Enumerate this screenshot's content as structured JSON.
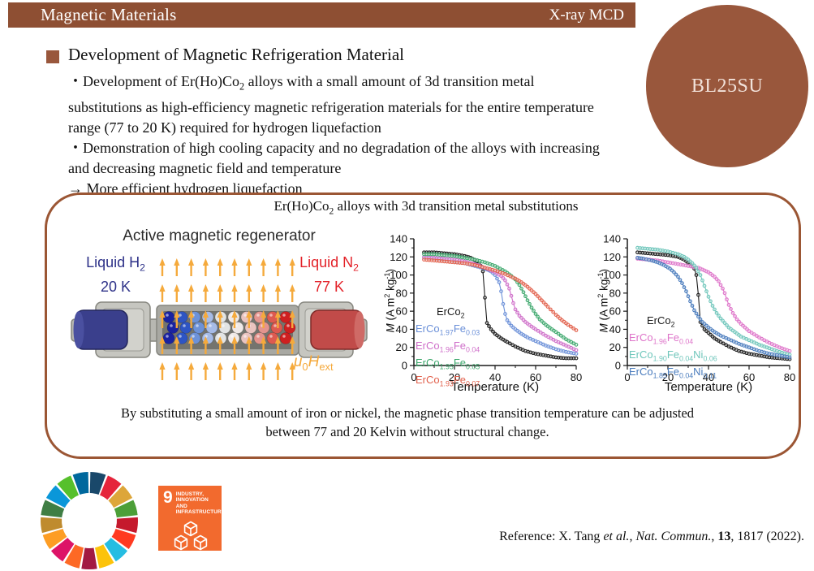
{
  "colors": {
    "brand_brown": "#8E4F33",
    "badge_brown": "#99573C",
    "box_border": "#9B5634",
    "accent_navy": "#2D3188",
    "accent_red": "#E32229",
    "accent_orange": "#F5A93B",
    "sdg9_orange": "#F26A2E"
  },
  "header": {
    "title": "Magnetic Materials",
    "tag": "X-ray MCD",
    "badge": "BL25SU"
  },
  "section": {
    "heading": "Development of Magnetic Refrigeration Material",
    "bullet1_html": "・Development of Er(Ho)Co<sub>2</sub> alloys with a small amount of 3d transition metal substitutions as high-efficiency magnetic refrigeration materials for the entire temperature range (77 to 20 K) required for hydrogen liquefaction",
    "bullet2_html": "・Demonstration of high cooling capacity and no degradation of the alloys with increasing and decreasing magnetic field and temperature",
    "arrow_html": "→ More efficient hydrogen liquefaction"
  },
  "figure_box": {
    "title_html": "Er(Ho)Co<sub>2</sub> alloys with 3d transition metal substitutions",
    "caption_html": "By substituting a small amount of iron or nickel, the magnetic phase transition temperature can be adjusted<br>between 77 and 20 Kelvin without structural change.",
    "diagram": {
      "title": "Active magnetic regenerator",
      "left_label_html": "Liquid H<sub>2</sub><br>20 K",
      "right_label_html": "Liquid N<sub>2</sub><br>77 K",
      "field_label_html": "<i>μ</i><sub>0</sub><i>H</i><sub>ext</sub>",
      "sphere_colors": [
        "#1A23A0",
        "#2E55C4",
        "#6D92D8",
        "#A6BBE6",
        "#E2E4E4",
        "#EFE9E7",
        "#EAC4C0",
        "#E4948E",
        "#DD5A50",
        "#CE2020"
      ],
      "arrow_color": "#F5AA3C"
    }
  },
  "chart_data": [
    {
      "type": "line",
      "title": "",
      "xlabel": "Temperature (K)",
      "ylabel_html": "<i>M</i> (A m<sup>2</sup> kg<sup>-1</sup>)",
      "xlim": [
        0,
        80
      ],
      "ylim": [
        0,
        140
      ],
      "xticks": [
        0,
        20,
        40,
        60,
        80
      ],
      "yticks": [
        0,
        20,
        40,
        60,
        80,
        100,
        120,
        140
      ],
      "grid": false,
      "legend_pos": {
        "left": 44,
        "top": 90,
        "first_indent": 26
      },
      "series": [
        {
          "name_html": "ErCo<sub>2</sub>",
          "color": "#1A1A1A",
          "points": [
            [
              5,
              125
            ],
            [
              10,
              125
            ],
            [
              15,
              124
            ],
            [
              20,
              123
            ],
            [
              25,
              121
            ],
            [
              28,
              119
            ],
            [
              31,
              115
            ],
            [
              33,
              110
            ],
            [
              34,
              104
            ],
            [
              35,
              75
            ],
            [
              36,
              47
            ],
            [
              38,
              40
            ],
            [
              40,
              35
            ],
            [
              43,
              30
            ],
            [
              46,
              26
            ],
            [
              50,
              21
            ],
            [
              55,
              16
            ],
            [
              60,
              13
            ],
            [
              65,
              11
            ],
            [
              70,
              9
            ],
            [
              75,
              8
            ],
            [
              80,
              8
            ]
          ]
        },
        {
          "name_html": "ErCo<sub>1.97</sub>Fe<sub>0.03</sub>",
          "color": "#6A8FD8",
          "points": [
            [
              5,
              119
            ],
            [
              10,
              118
            ],
            [
              15,
              117
            ],
            [
              20,
              115
            ],
            [
              25,
              113
            ],
            [
              30,
              110
            ],
            [
              35,
              107
            ],
            [
              38,
              104
            ],
            [
              40,
              100
            ],
            [
              42,
              92
            ],
            [
              43,
              82
            ],
            [
              44,
              68
            ],
            [
              45,
              57
            ],
            [
              46,
              50
            ],
            [
              48,
              44
            ],
            [
              50,
              40
            ],
            [
              53,
              35
            ],
            [
              56,
              31
            ],
            [
              60,
              27
            ],
            [
              65,
              22
            ],
            [
              70,
              18
            ],
            [
              75,
              15
            ],
            [
              80,
              13
            ]
          ]
        },
        {
          "name_html": "ErCo<sub>1.96</sub>Fe<sub>0.04</sub>",
          "color": "#CF6FC9",
          "points": [
            [
              5,
              120
            ],
            [
              10,
              119
            ],
            [
              15,
              118
            ],
            [
              20,
              117
            ],
            [
              25,
              115
            ],
            [
              30,
              112
            ],
            [
              35,
              108
            ],
            [
              40,
              103
            ],
            [
              43,
              99
            ],
            [
              45,
              94
            ],
            [
              47,
              85
            ],
            [
              48,
              77
            ],
            [
              49,
              69
            ],
            [
              50,
              62
            ],
            [
              52,
              55
            ],
            [
              55,
              48
            ],
            [
              58,
              43
            ],
            [
              60,
              40
            ],
            [
              65,
              33
            ],
            [
              70,
              27
            ],
            [
              75,
              22
            ],
            [
              80,
              17
            ]
          ]
        },
        {
          "name_html": "ErCo<sub>1.95</sub>Fe<sub>0.05</sub>",
          "color": "#3EA86D",
          "points": [
            [
              5,
              123
            ],
            [
              10,
              123
            ],
            [
              15,
              122
            ],
            [
              20,
              121
            ],
            [
              25,
              119
            ],
            [
              30,
              117
            ],
            [
              35,
              114
            ],
            [
              40,
              110
            ],
            [
              45,
              104
            ],
            [
              48,
              99
            ],
            [
              50,
              95
            ],
            [
              52,
              89
            ],
            [
              54,
              81
            ],
            [
              56,
              72
            ],
            [
              58,
              64
            ],
            [
              60,
              57
            ],
            [
              62,
              51
            ],
            [
              65,
              45
            ],
            [
              68,
              40
            ],
            [
              70,
              37
            ],
            [
              75,
              29
            ],
            [
              80,
              23
            ]
          ]
        },
        {
          "name_html": "ErCo<sub>1.93</sub>Fe<sub>0.07</sub>",
          "color": "#E2604B",
          "points": [
            [
              5,
              117
            ],
            [
              10,
              116
            ],
            [
              15,
              115
            ],
            [
              20,
              114
            ],
            [
              25,
              113
            ],
            [
              30,
              111
            ],
            [
              35,
              108
            ],
            [
              40,
              105
            ],
            [
              45,
              101
            ],
            [
              50,
              96
            ],
            [
              53,
              92
            ],
            [
              56,
              87
            ],
            [
              58,
              83
            ],
            [
              60,
              79
            ],
            [
              63,
              72
            ],
            [
              66,
              65
            ],
            [
              70,
              56
            ],
            [
              73,
              50
            ],
            [
              76,
              45
            ],
            [
              80,
              39
            ]
          ]
        }
      ]
    },
    {
      "type": "line",
      "title": "",
      "xlabel": "Temperature (K)",
      "ylabel_html": "<i>M</i> (A m<sup>2</sup> kg<sup>-1</sup>)",
      "xlim": [
        0,
        80
      ],
      "ylim": [
        0,
        140
      ],
      "xticks": [
        0,
        20,
        40,
        60,
        80
      ],
      "yticks": [
        0,
        20,
        40,
        60,
        80,
        100,
        120,
        140
      ],
      "grid": false,
      "legend_pos": {
        "left": 44,
        "top": 101,
        "first_indent": 22
      },
      "series": [
        {
          "name_html": "ErCo<sub>2</sub>",
          "color": "#1A1A1A",
          "points": [
            [
              5,
              125
            ],
            [
              10,
              124
            ],
            [
              15,
              123
            ],
            [
              20,
              122
            ],
            [
              25,
              120
            ],
            [
              28,
              117
            ],
            [
              31,
              112
            ],
            [
              33,
              107
            ],
            [
              34,
              100
            ],
            [
              35,
              78
            ],
            [
              36,
              48
            ],
            [
              38,
              40
            ],
            [
              40,
              36
            ],
            [
              43,
              30
            ],
            [
              46,
              26
            ],
            [
              50,
              21
            ],
            [
              55,
              16
            ],
            [
              60,
              13
            ],
            [
              65,
              11
            ],
            [
              70,
              9
            ],
            [
              75,
              8
            ],
            [
              80,
              7
            ]
          ]
        },
        {
          "name_html": "ErCo<sub>1.96</sub>Fe<sub>0.04</sub>",
          "color": "#DE74C9",
          "points": [
            [
              5,
              118
            ],
            [
              10,
              117
            ],
            [
              15,
              116
            ],
            [
              20,
              114
            ],
            [
              25,
              112
            ],
            [
              30,
              110
            ],
            [
              35,
              108
            ],
            [
              38,
              105
            ],
            [
              40,
              103
            ],
            [
              43,
              98
            ],
            [
              45,
              93
            ],
            [
              47,
              85
            ],
            [
              48,
              80
            ],
            [
              49,
              73
            ],
            [
              50,
              67
            ],
            [
              52,
              58
            ],
            [
              54,
              51
            ],
            [
              56,
              46
            ],
            [
              58,
              42
            ],
            [
              60,
              38
            ],
            [
              65,
              31
            ],
            [
              70,
              25
            ],
            [
              75,
              20
            ],
            [
              80,
              16
            ]
          ]
        },
        {
          "name_html": "ErCo<sub>1.90</sub>Fe<sub>0.04</sub>Ni<sub>0.06</sub>",
          "color": "#6FC6BB",
          "points": [
            [
              5,
              130
            ],
            [
              10,
              129
            ],
            [
              15,
              128
            ],
            [
              20,
              126
            ],
            [
              25,
              123
            ],
            [
              28,
              120
            ],
            [
              30,
              117
            ],
            [
              32,
              113
            ],
            [
              34,
              108
            ],
            [
              36,
              100
            ],
            [
              37,
              94
            ],
            [
              38,
              88
            ],
            [
              39,
              82
            ],
            [
              40,
              76
            ],
            [
              42,
              66
            ],
            [
              44,
              58
            ],
            [
              46,
              52
            ],
            [
              48,
              47
            ],
            [
              50,
              42
            ],
            [
              53,
              37
            ],
            [
              56,
              32
            ],
            [
              60,
              28
            ],
            [
              65,
              23
            ],
            [
              70,
              19
            ],
            [
              75,
              15
            ],
            [
              80,
              12
            ]
          ]
        },
        {
          "name_html": "ErCo<sub>1.85</sub>Fe<sub>0.04</sub>Ni<sub>0.11</sub>",
          "color": "#4A7CBD",
          "points": [
            [
              5,
              119
            ],
            [
              8,
              118
            ],
            [
              12,
              116
            ],
            [
              15,
              114
            ],
            [
              18,
              111
            ],
            [
              21,
              107
            ],
            [
              23,
              103
            ],
            [
              25,
              98
            ],
            [
              27,
              91
            ],
            [
              29,
              82
            ],
            [
              31,
              71
            ],
            [
              33,
              61
            ],
            [
              35,
              54
            ],
            [
              37,
              48
            ],
            [
              40,
              42
            ],
            [
              43,
              37
            ],
            [
              46,
              33
            ],
            [
              50,
              29
            ],
            [
              55,
              24
            ],
            [
              60,
              20
            ],
            [
              65,
              16
            ],
            [
              70,
              13
            ],
            [
              75,
              11
            ],
            [
              80,
              9
            ]
          ]
        }
      ]
    }
  ],
  "sdg": {
    "wheel_colors": [
      "#19486A",
      "#E5243B",
      "#DDA63A",
      "#4C9F38",
      "#C5192D",
      "#FF3A21",
      "#26BDE2",
      "#FCC30B",
      "#A21942",
      "#FD6925",
      "#DD1367",
      "#FD9D24",
      "#BF8B2E",
      "#3F7E44",
      "#0A97D9",
      "#56C02B",
      "#00689D"
    ],
    "goal9": {
      "number": "9",
      "label_line1": "INDUSTRY, INNOVATION",
      "label_line2": "AND INFRASTRUCTURE",
      "bg": "#F26A2E"
    }
  },
  "reference_html": "Reference: X. Tang <i>et al.</i>, <i>Nat. Commun.</i>, <b>13</b>, 1817 (2022)."
}
